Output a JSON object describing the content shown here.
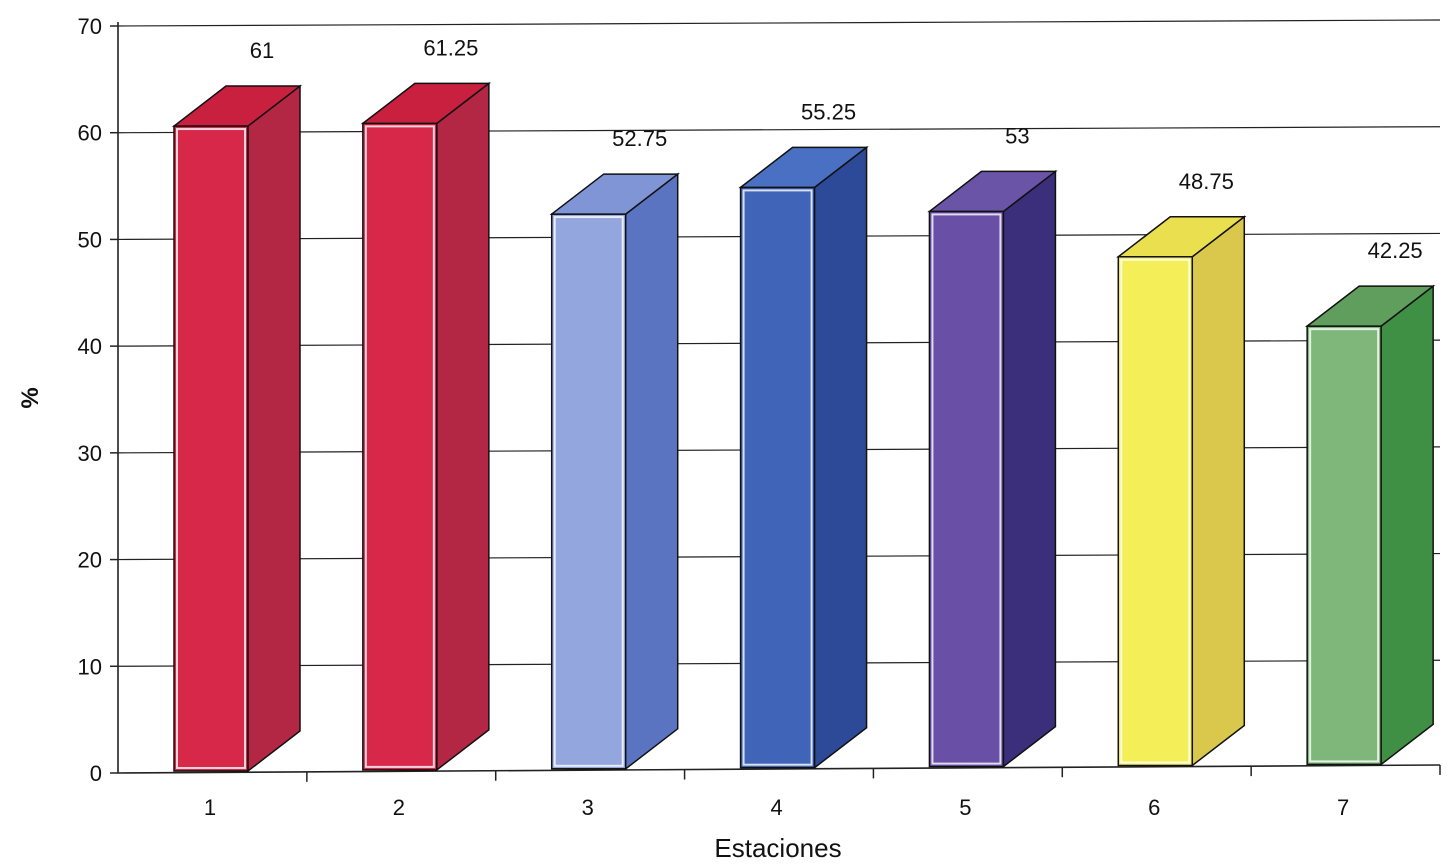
{
  "chart_data": {
    "type": "bar",
    "categories": [
      "1",
      "2",
      "3",
      "4",
      "5",
      "6",
      "7"
    ],
    "values": [
      61,
      61.25,
      52.75,
      55.25,
      53,
      48.75,
      42.25
    ],
    "data_labels": [
      "61",
      "61.25",
      "52.75",
      "55.25",
      "53",
      "48.75",
      "42.25"
    ],
    "title": "",
    "xlabel": "Estaciones",
    "ylabel": "%",
    "ylim": [
      0,
      70
    ],
    "yticks": [
      "0",
      "10",
      "20",
      "30",
      "40",
      "50",
      "60",
      "70"
    ],
    "grid": true,
    "style": "3d-column",
    "bar_colors": [
      "#d8284a",
      "#d8284a",
      "#93a6dd",
      "#3f64b8",
      "#6a4fa6",
      "#f4ee58",
      "#7fb77a"
    ],
    "bar_side_colors": [
      "#b32745",
      "#b32745",
      "#5a74c2",
      "#2d4a98",
      "#3b2e7a",
      "#d9c84c",
      "#3f8f45"
    ],
    "bar_top_colors": [
      "#c8203e",
      "#c8203e",
      "#7f95d6",
      "#4a70c4",
      "#6a54a8",
      "#eae04f",
      "#5f9e5c"
    ]
  }
}
